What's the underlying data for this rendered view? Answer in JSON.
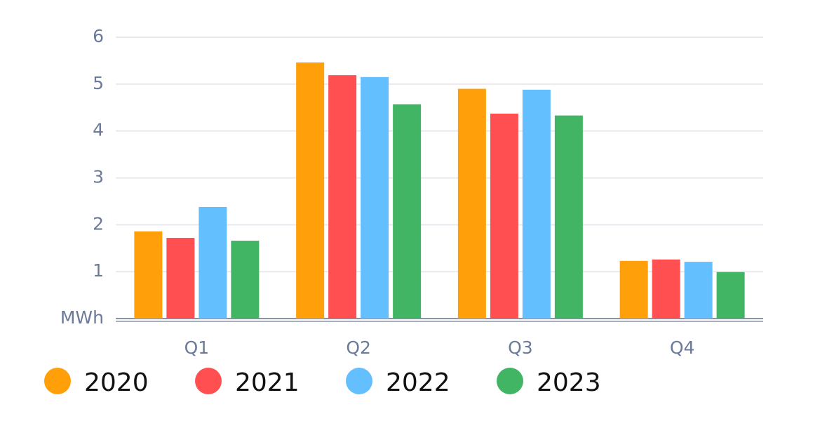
{
  "chart_data": {
    "type": "bar",
    "categories": [
      "Q1",
      "Q2",
      "Q3",
      "Q4"
    ],
    "series": [
      {
        "name": "2020",
        "color": "#ff9f0a",
        "values": [
          1.86,
          5.46,
          4.9,
          1.23
        ]
      },
      {
        "name": "2021",
        "color": "#ff4f50",
        "values": [
          1.72,
          5.19,
          4.37,
          1.26
        ]
      },
      {
        "name": "2022",
        "color": "#64bfff",
        "values": [
          2.38,
          5.15,
          4.88,
          1.21
        ]
      },
      {
        "name": "2023",
        "color": "#41b563",
        "values": [
          1.66,
          4.57,
          4.33,
          0.99
        ]
      }
    ],
    "ylim": [
      0,
      6
    ],
    "yticks": [
      {
        "value": 0,
        "label": "MWh"
      },
      1,
      2,
      3,
      4,
      5,
      6
    ],
    "grid": true
  }
}
